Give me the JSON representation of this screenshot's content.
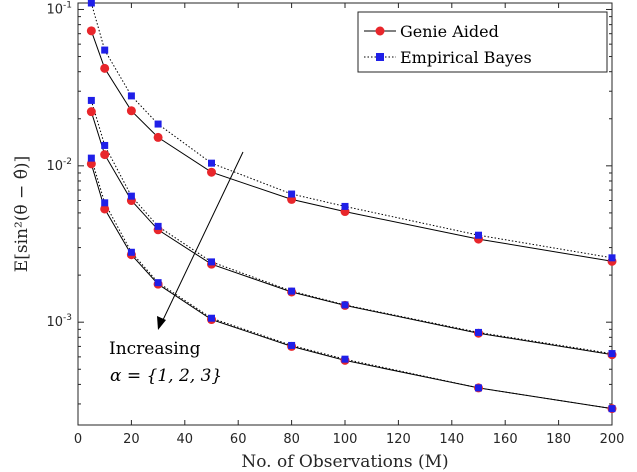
{
  "chart_data": {
    "type": "line",
    "xlabel": "No. of Observations (M)",
    "ylabel": "E[sin²(θ − θ̂)]",
    "xlim": [
      0,
      200
    ],
    "ylim": [
      0.00022,
      0.11
    ],
    "yscale": "log",
    "x_ticks": [
      0,
      20,
      40,
      60,
      80,
      100,
      120,
      140,
      160,
      180,
      200
    ],
    "y_ticks": [
      {
        "value": 0.001,
        "base": "10",
        "exp": "-3"
      },
      {
        "value": 0.01,
        "base": "10",
        "exp": "-2"
      },
      {
        "value": 0.1,
        "base": "10",
        "exp": "-1"
      }
    ],
    "x": [
      5,
      10,
      20,
      30,
      50,
      80,
      100,
      150,
      200
    ],
    "legend": {
      "position": "top-right",
      "entries": [
        {
          "label": "Genie Aided",
          "style": "solid",
          "marker": "circle",
          "color": "#e8262b"
        },
        {
          "label": "Empirical Bayes",
          "style": "dotted",
          "marker": "square",
          "color": "#1f1fe8"
        }
      ]
    },
    "series": [
      {
        "group": 1,
        "method": "Genie Aided",
        "values": [
          0.073,
          0.042,
          0.0225,
          0.0152,
          0.0091,
          0.0061,
          0.0051,
          0.0034,
          0.00245
        ]
      },
      {
        "group": 1,
        "method": "Empirical Bayes",
        "values": [
          0.11,
          0.055,
          0.028,
          0.0185,
          0.0104,
          0.0066,
          0.0055,
          0.0036,
          0.00258
        ]
      },
      {
        "group": 2,
        "method": "Genie Aided",
        "values": [
          0.0222,
          0.0118,
          0.006,
          0.0039,
          0.00235,
          0.00156,
          0.00128,
          0.00085,
          0.00062
        ]
      },
      {
        "group": 2,
        "method": "Empirical Bayes",
        "values": [
          0.0262,
          0.0135,
          0.0064,
          0.0041,
          0.00243,
          0.00158,
          0.00129,
          0.00086,
          0.00063
        ]
      },
      {
        "group": 3,
        "method": "Genie Aided",
        "values": [
          0.0103,
          0.0053,
          0.0027,
          0.00175,
          0.00104,
          0.0007,
          0.00057,
          0.00038,
          0.00028
        ]
      },
      {
        "group": 3,
        "method": "Empirical Bayes",
        "values": [
          0.0112,
          0.0058,
          0.0028,
          0.00179,
          0.00106,
          0.00071,
          0.00058,
          0.00038,
          0.00028
        ]
      }
    ],
    "annotation": {
      "line1": "Increasing",
      "line2": "α = {1, 2, 3}"
    },
    "grid": false
  }
}
